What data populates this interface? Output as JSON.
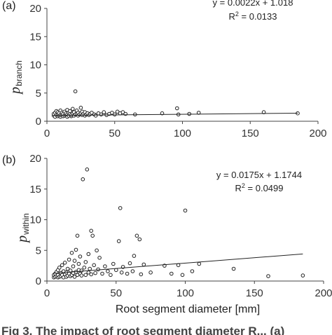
{
  "chart_data": [
    {
      "type": "scatter",
      "panel_label": "(a)",
      "ylabel_main": "p",
      "ylabel_sub": "branch",
      "xlabel": "",
      "xlim": [
        0,
        200
      ],
      "ylim": [
        0,
        20
      ],
      "xticks": [
        0,
        50,
        100,
        150,
        200
      ],
      "yticks": [
        0,
        5,
        10,
        15,
        20
      ],
      "equation": "y = 0.0022x + 1.018",
      "r2_prefix": "R",
      "r2_sup": "2",
      "r2_value": " = 0.0133",
      "trendline": {
        "slope": 0.0022,
        "intercept": 1.018
      },
      "points": [
        [
          5,
          1.0
        ],
        [
          5,
          1.3
        ],
        [
          6,
          0.8
        ],
        [
          6,
          1.5
        ],
        [
          7,
          1.1
        ],
        [
          7,
          1.8
        ],
        [
          8,
          0.9
        ],
        [
          8,
          1.2
        ],
        [
          8,
          1.6
        ],
        [
          9,
          1.0
        ],
        [
          9,
          1.4
        ],
        [
          10,
          0.8
        ],
        [
          10,
          1.1
        ],
        [
          10,
          1.9
        ],
        [
          11,
          1.2
        ],
        [
          11,
          1.5
        ],
        [
          12,
          0.9
        ],
        [
          12,
          1.3
        ],
        [
          13,
          1.0
        ],
        [
          13,
          1.7
        ],
        [
          14,
          1.1
        ],
        [
          14,
          1.4
        ],
        [
          15,
          0.8
        ],
        [
          15,
          1.2
        ],
        [
          15,
          2.0
        ],
        [
          16,
          1.0
        ],
        [
          16,
          1.5
        ],
        [
          17,
          1.3
        ],
        [
          17,
          1.8
        ],
        [
          18,
          0.9
        ],
        [
          18,
          1.1
        ],
        [
          19,
          1.4
        ],
        [
          19,
          2.2
        ],
        [
          20,
          1.0
        ],
        [
          20,
          1.6
        ],
        [
          21,
          1.2
        ],
        [
          21,
          5.3
        ],
        [
          22,
          1.3
        ],
        [
          22,
          1.9
        ],
        [
          23,
          1.0
        ],
        [
          23,
          1.5
        ],
        [
          24,
          1.2
        ],
        [
          25,
          1.4
        ],
        [
          25,
          2.4
        ],
        [
          26,
          1.1
        ],
        [
          26,
          1.7
        ],
        [
          27,
          1.3
        ],
        [
          28,
          1.0
        ],
        [
          28,
          1.6
        ],
        [
          29,
          1.2
        ],
        [
          30,
          1.4
        ],
        [
          31,
          1.1
        ],
        [
          32,
          1.3
        ],
        [
          33,
          1.5
        ],
        [
          35,
          1.2
        ],
        [
          36,
          1.0
        ],
        [
          38,
          1.4
        ],
        [
          40,
          1.2
        ],
        [
          42,
          1.6
        ],
        [
          44,
          1.1
        ],
        [
          46,
          1.3
        ],
        [
          48,
          1.5
        ],
        [
          50,
          1.2
        ],
        [
          52,
          1.7
        ],
        [
          54,
          1.4
        ],
        [
          56,
          1.6
        ],
        [
          58,
          1.3
        ],
        [
          65,
          1.2
        ],
        [
          85,
          1.4
        ],
        [
          96,
          2.3
        ],
        [
          97,
          1.2
        ],
        [
          105,
          1.3
        ],
        [
          112,
          1.5
        ],
        [
          160,
          1.6
        ],
        [
          185,
          1.4
        ]
      ]
    },
    {
      "type": "scatter",
      "panel_label": "(b)",
      "ylabel_main": "p",
      "ylabel_sub": "within",
      "xlabel": "Root segment diameter [mm]",
      "xlim": [
        0,
        200
      ],
      "ylim": [
        0,
        20
      ],
      "xticks": [
        0,
        50,
        100,
        150,
        200
      ],
      "yticks": [
        0,
        5,
        10,
        15,
        20
      ],
      "equation": "y = 0.0175x + 1.1744",
      "r2_prefix": "R",
      "r2_sup": "2",
      "r2_value": " = 0.0499",
      "trendline": {
        "slope": 0.0175,
        "intercept": 1.1744
      },
      "points": [
        [
          5,
          0.6
        ],
        [
          5,
          1.0
        ],
        [
          6,
          0.7
        ],
        [
          6,
          1.2
        ],
        [
          7,
          0.8
        ],
        [
          7,
          1.5
        ],
        [
          8,
          0.6
        ],
        [
          8,
          1.0
        ],
        [
          8,
          1.8
        ],
        [
          9,
          0.7
        ],
        [
          9,
          2.2
        ],
        [
          10,
          0.8
        ],
        [
          10,
          1.3
        ],
        [
          11,
          1.0
        ],
        [
          11,
          2.6
        ],
        [
          12,
          0.6
        ],
        [
          12,
          1.6
        ],
        [
          13,
          1.1
        ],
        [
          13,
          3.0
        ],
        [
          14,
          0.7
        ],
        [
          14,
          1.4
        ],
        [
          15,
          0.9
        ],
        [
          15,
          2.0
        ],
        [
          16,
          1.2
        ],
        [
          16,
          3.5
        ],
        [
          17,
          0.8
        ],
        [
          17,
          1.7
        ],
        [
          18,
          1.0
        ],
        [
          18,
          4.6
        ],
        [
          19,
          1.3
        ],
        [
          19,
          2.4
        ],
        [
          20,
          0.7
        ],
        [
          20,
          3.3
        ],
        [
          21,
          1.5
        ],
        [
          21,
          5.1
        ],
        [
          22,
          1.0
        ],
        [
          22,
          7.4
        ],
        [
          23,
          1.8
        ],
        [
          23,
          2.8
        ],
        [
          24,
          1.2
        ],
        [
          24,
          4.0
        ],
        [
          25,
          0.9
        ],
        [
          25,
          1.7
        ],
        [
          26,
          16.6
        ],
        [
          27,
          2.2
        ],
        [
          28,
          1.0
        ],
        [
          28,
          3.1
        ],
        [
          29,
          18.2
        ],
        [
          30,
          1.4
        ],
        [
          30,
          4.4
        ],
        [
          31,
          2.0
        ],
        [
          32,
          8.2
        ],
        [
          32,
          1.1
        ],
        [
          33,
          7.4
        ],
        [
          34,
          2.6
        ],
        [
          35,
          1.3
        ],
        [
          36,
          5.0
        ],
        [
          37,
          1.9
        ],
        [
          38,
          3.8
        ],
        [
          40,
          1.2
        ],
        [
          42,
          2.4
        ],
        [
          44,
          1.6
        ],
        [
          46,
          1.0
        ],
        [
          48,
          2.8
        ],
        [
          50,
          1.8
        ],
        [
          52,
          6.5
        ],
        [
          53,
          11.9
        ],
        [
          54,
          1.4
        ],
        [
          55,
          2.3
        ],
        [
          58,
          1.2
        ],
        [
          60,
          2.9
        ],
        [
          62,
          1.6
        ],
        [
          63,
          4.1
        ],
        [
          65,
          7.4
        ],
        [
          67,
          6.8
        ],
        [
          68,
          1.1
        ],
        [
          70,
          2.7
        ],
        [
          75,
          1.4
        ],
        [
          85,
          2.5
        ],
        [
          90,
          1.2
        ],
        [
          95,
          2.6
        ],
        [
          98,
          1.0
        ],
        [
          100,
          11.5
        ],
        [
          105,
          1.6
        ],
        [
          110,
          2.8
        ],
        [
          135,
          2.0
        ],
        [
          160,
          0.8
        ],
        [
          185,
          0.9
        ]
      ]
    }
  ],
  "caption": "Fig 3.  The impact of root segment diameter  R... (a)"
}
